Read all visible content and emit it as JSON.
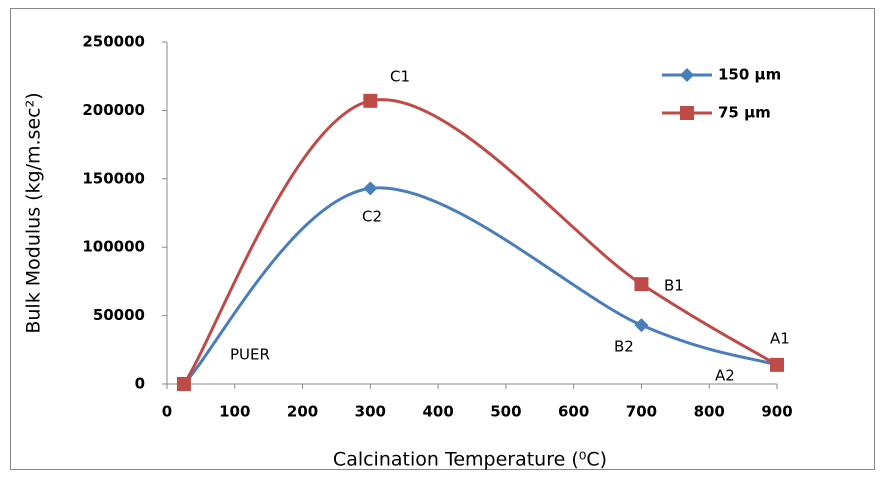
{
  "chart_data": {
    "type": "line",
    "xlabel": "Calcination Temperature (⁰C)",
    "ylabel": "Bulk Modulus (kg/m.sec²)",
    "x": [
      25,
      300,
      700,
      900
    ],
    "series": [
      {
        "name": "150 µm",
        "color": "#4a7ebb",
        "marker": "diamond",
        "values": [
          0,
          143000,
          43000,
          14000
        ]
      },
      {
        "name": "75 µm",
        "color": "#be4b48",
        "marker": "square",
        "values": [
          0,
          207000,
          73000,
          14000
        ]
      }
    ],
    "xlim": [
      0,
      900
    ],
    "xticks": [
      0,
      100,
      200,
      300,
      400,
      500,
      600,
      700,
      800,
      900
    ],
    "ylim": [
      0,
      250000
    ],
    "yticks": [
      0,
      50000,
      100000,
      150000,
      200000,
      250000
    ],
    "grid": false,
    "legend": "upper right",
    "annotations": [
      "C1",
      "C2",
      "B1",
      "B2",
      "A1",
      "A2",
      "PUER"
    ]
  }
}
